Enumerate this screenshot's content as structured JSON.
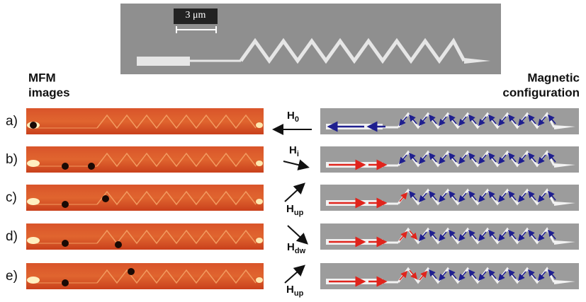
{
  "top_image": {
    "scale_bar": "3 μm"
  },
  "left_heading": [
    "MFM",
    "images"
  ],
  "right_heading": [
    "Magnetic",
    "configuration"
  ],
  "rows": [
    {
      "label": "a)",
      "field": "H",
      "field_sub": "0"
    },
    {
      "label": "b)",
      "field": "H",
      "field_sub": "i"
    },
    {
      "label": "c)",
      "field": "H",
      "field_sub": "up"
    },
    {
      "label": "d)",
      "field": "H",
      "field_sub": "dw"
    },
    {
      "label": "e)",
      "field": "H",
      "field_sub": "up"
    }
  ]
}
